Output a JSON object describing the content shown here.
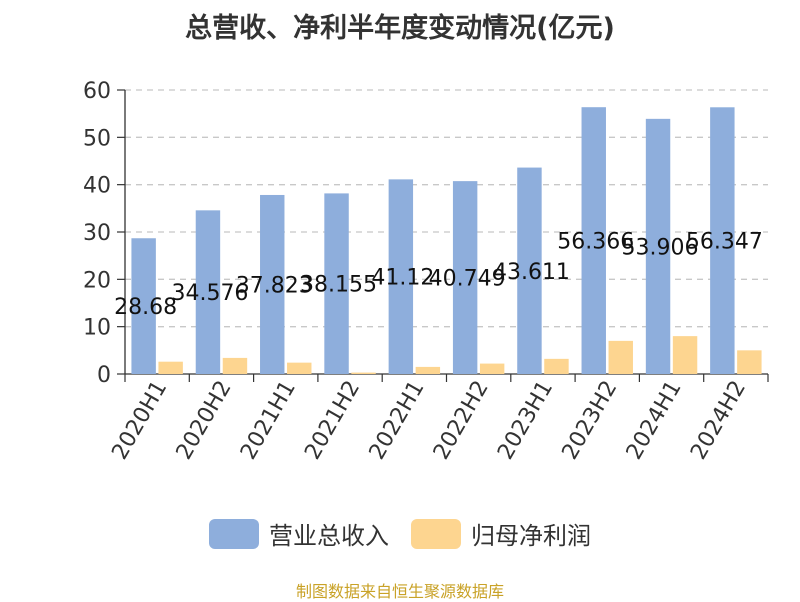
{
  "chart_data": {
    "type": "bar",
    "title": "总营收、净利半年度变动情况(亿元)",
    "categories": [
      "2020H1",
      "2020H2",
      "2021H1",
      "2021H2",
      "2022H1",
      "2022H2",
      "2023H1",
      "2023H2",
      "2024H1",
      "2024H2"
    ],
    "series": [
      {
        "name": "营业总收入",
        "color": "#8eaedc",
        "values": [
          28.68,
          34.576,
          37.823,
          38.155,
          41.12,
          40.749,
          43.611,
          56.366,
          53.906,
          56.347
        ],
        "labels": [
          "28.68",
          "34.576",
          "37.823",
          "38.155",
          "41.12",
          "40.749",
          "43.611",
          "56.366",
          "53.906",
          "56.347"
        ]
      },
      {
        "name": "归母净利润",
        "color": "#fdd590",
        "values": [
          2.6,
          3.4,
          2.4,
          0.3,
          1.5,
          2.2,
          3.2,
          7.0,
          8.0,
          5.0
        ]
      }
    ],
    "ylim": [
      0,
      60
    ],
    "yticks": [
      0,
      10,
      20,
      30,
      40,
      50,
      60
    ],
    "grid": true,
    "legend_position": "bottom"
  },
  "source": {
    "text": "制图数据来自恒生聚源数据库",
    "color": "#c9a227"
  }
}
